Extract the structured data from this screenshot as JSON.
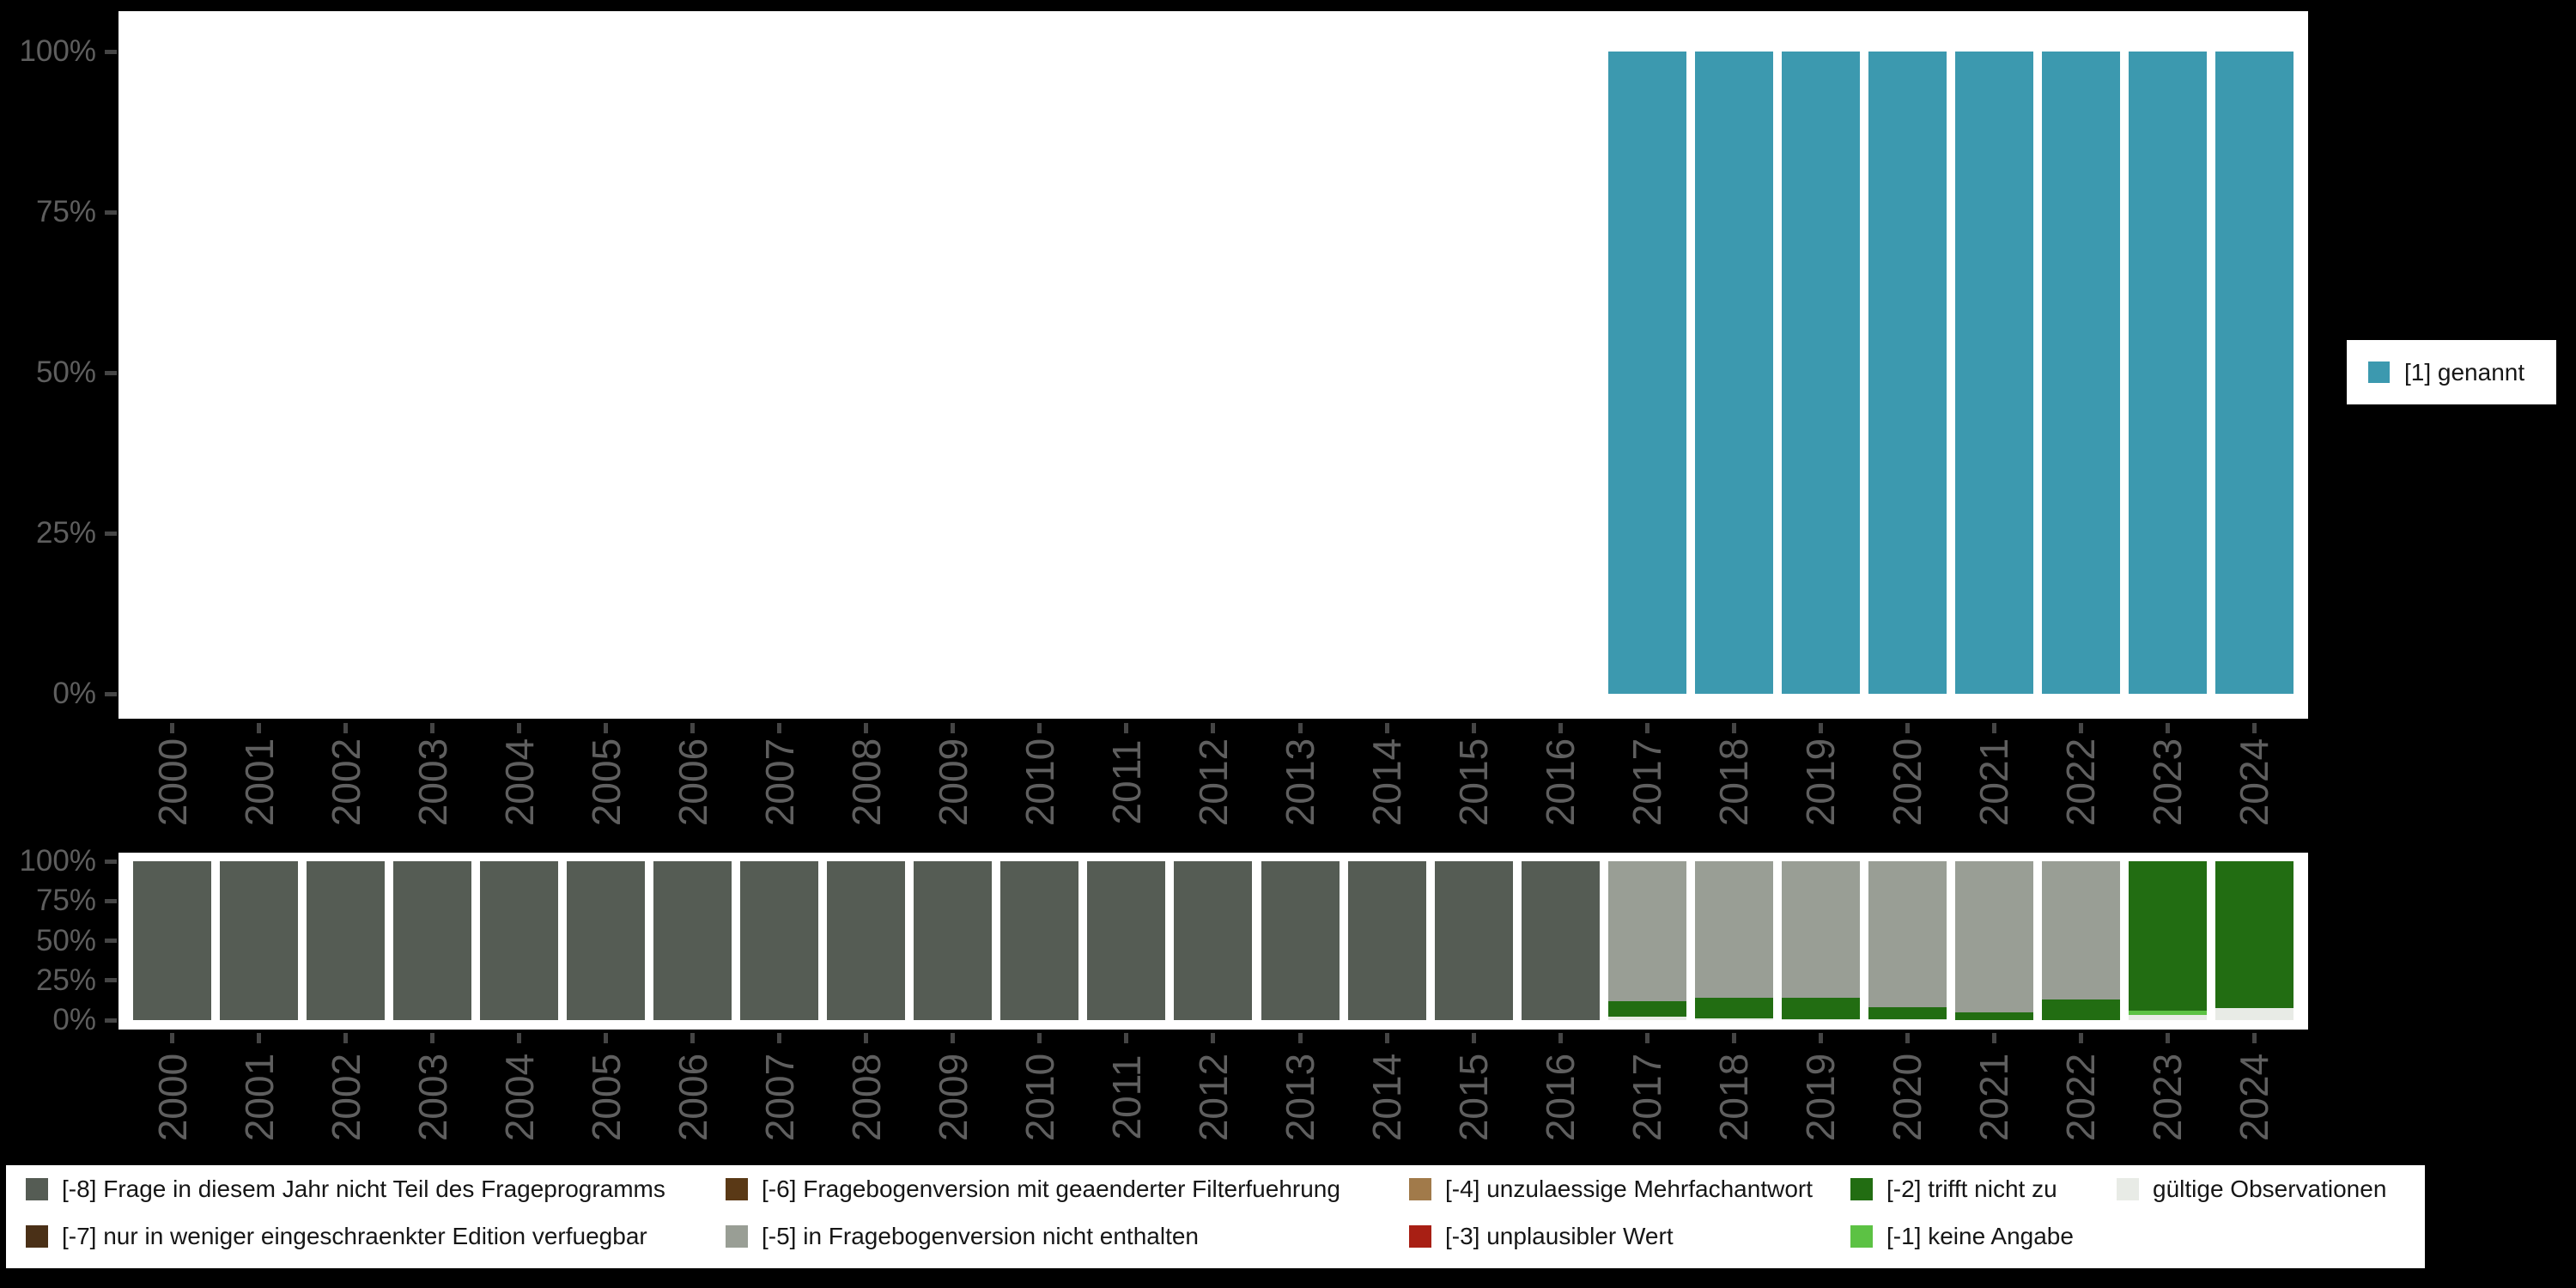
{
  "background": "#000000",
  "top_legend": {
    "label": "[1] genannt",
    "color": "#3c99af"
  },
  "chart_data": [
    {
      "id": "top",
      "type": "bar",
      "stacked": true,
      "unit": "percent",
      "ylim": [
        0,
        100
      ],
      "grid": false,
      "legend_position": "right",
      "categories": [
        "2000",
        "2001",
        "2002",
        "2003",
        "2004",
        "2005",
        "2006",
        "2007",
        "2008",
        "2009",
        "2010",
        "2011",
        "2012",
        "2013",
        "2014",
        "2015",
        "2016",
        "2017",
        "2018",
        "2019",
        "2020",
        "2021",
        "2022",
        "2023",
        "2024"
      ],
      "y_ticks": [
        "100%",
        "75%",
        "50%",
        "25%",
        "0%"
      ],
      "stack_order": "bottom_to_top",
      "series": [
        {
          "name": "[1] genannt",
          "code": "1",
          "color": "#3c99af",
          "values": [
            0,
            0,
            0,
            0,
            0,
            0,
            0,
            0,
            0,
            0,
            0,
            0,
            0,
            0,
            0,
            0,
            0,
            100,
            100,
            100,
            100,
            100,
            100,
            100,
            100
          ]
        }
      ]
    },
    {
      "id": "bottom",
      "type": "bar",
      "stacked": true,
      "unit": "percent",
      "ylim": [
        0,
        100
      ],
      "grid": false,
      "legend_position": "bottom",
      "categories": [
        "2000",
        "2001",
        "2002",
        "2003",
        "2004",
        "2005",
        "2006",
        "2007",
        "2008",
        "2009",
        "2010",
        "2011",
        "2012",
        "2013",
        "2014",
        "2015",
        "2016",
        "2017",
        "2018",
        "2019",
        "2020",
        "2021",
        "2022",
        "2023",
        "2024"
      ],
      "y_ticks": [
        "100%",
        "75%",
        "50%",
        "25%",
        "0%"
      ],
      "stack_order": "bottom_to_top",
      "series": [
        {
          "name": "gültige Observationen",
          "code": "valid",
          "color": "#e8ebe6",
          "values": [
            0,
            0,
            0,
            0,
            0,
            0,
            0,
            0,
            0,
            0,
            0,
            0,
            0,
            0,
            0,
            0,
            0,
            2.2,
            1.2,
            0.5,
            0.5,
            0,
            0,
            3.4,
            7.3
          ]
        },
        {
          "name": "[-1] keine Angabe",
          "code": "-1",
          "color": "#5cc244",
          "values": [
            0,
            0,
            0,
            0,
            0,
            0,
            0,
            0,
            0,
            0,
            0,
            0,
            0,
            0,
            0,
            0,
            0,
            0,
            0,
            0,
            0,
            0,
            0,
            2.7,
            0
          ]
        },
        {
          "name": "[-2] trifft nicht zu",
          "code": "-2",
          "color": "#226d12",
          "values": [
            0,
            0,
            0,
            0,
            0,
            0,
            0,
            0,
            0,
            0,
            0,
            0,
            0,
            0,
            0,
            0,
            0,
            9.7,
            13,
            13.3,
            7.7,
            4.9,
            13.1,
            93.9,
            92.7
          ]
        },
        {
          "name": "[-3] unplausibler Wert",
          "code": "-3",
          "color": "#a81f14",
          "values": [
            0,
            0,
            0,
            0,
            0,
            0,
            0,
            0,
            0,
            0,
            0,
            0,
            0,
            0,
            0,
            0,
            0,
            0,
            0,
            0,
            0,
            0,
            0,
            0,
            0
          ]
        },
        {
          "name": "[-4] unzulaessige Mehrfachantwort",
          "code": "-4",
          "color": "#a17a4a",
          "values": [
            0,
            0,
            0,
            0,
            0,
            0,
            0,
            0,
            0,
            0,
            0,
            0,
            0,
            0,
            0,
            0,
            0,
            0,
            0,
            0,
            0,
            0,
            0,
            0,
            0
          ]
        },
        {
          "name": "[-5] in Fragebogenversion nicht enthalten",
          "code": "-5",
          "color": "#999e95",
          "values": [
            0,
            0,
            0,
            0,
            0,
            0,
            0,
            0,
            0,
            0,
            0,
            0,
            0,
            0,
            0,
            0,
            0,
            88.1,
            85.8,
            86.2,
            91.8,
            95.1,
            86.9,
            0,
            0
          ]
        },
        {
          "name": "[-6] Fragebogenversion mit geaenderter Filterfuehrung",
          "code": "-6",
          "color": "#5a3916",
          "values": [
            0,
            0,
            0,
            0,
            0,
            0,
            0,
            0,
            0,
            0,
            0,
            0,
            0,
            0,
            0,
            0,
            0,
            0,
            0,
            0,
            0,
            0,
            0,
            0,
            0
          ]
        },
        {
          "name": "[-7] nur in weniger eingeschraenkter Edition verfuegbar",
          "code": "-7",
          "color": "#4a3017",
          "values": [
            0,
            0,
            0,
            0,
            0,
            0,
            0,
            0,
            0,
            0,
            0,
            0,
            0,
            0,
            0,
            0,
            0,
            0,
            0,
            0,
            0,
            0,
            0,
            0,
            0
          ]
        },
        {
          "name": "[-8] Frage in diesem Jahr nicht Teil des Frageprogramms",
          "code": "-8",
          "color": "#555c54",
          "values": [
            100,
            100,
            100,
            100,
            100,
            100,
            100,
            100,
            100,
            100,
            100,
            100,
            100,
            100,
            100,
            100,
            100,
            0,
            0,
            0,
            0,
            0,
            0,
            0,
            0
          ]
        }
      ]
    }
  ],
  "bottom_legend": {
    "order": [
      [
        "-8",
        "-7"
      ],
      [
        "-6",
        "-5"
      ],
      [
        "-4",
        "-3"
      ],
      [
        "-2",
        "-1"
      ],
      [
        "valid"
      ]
    ]
  }
}
